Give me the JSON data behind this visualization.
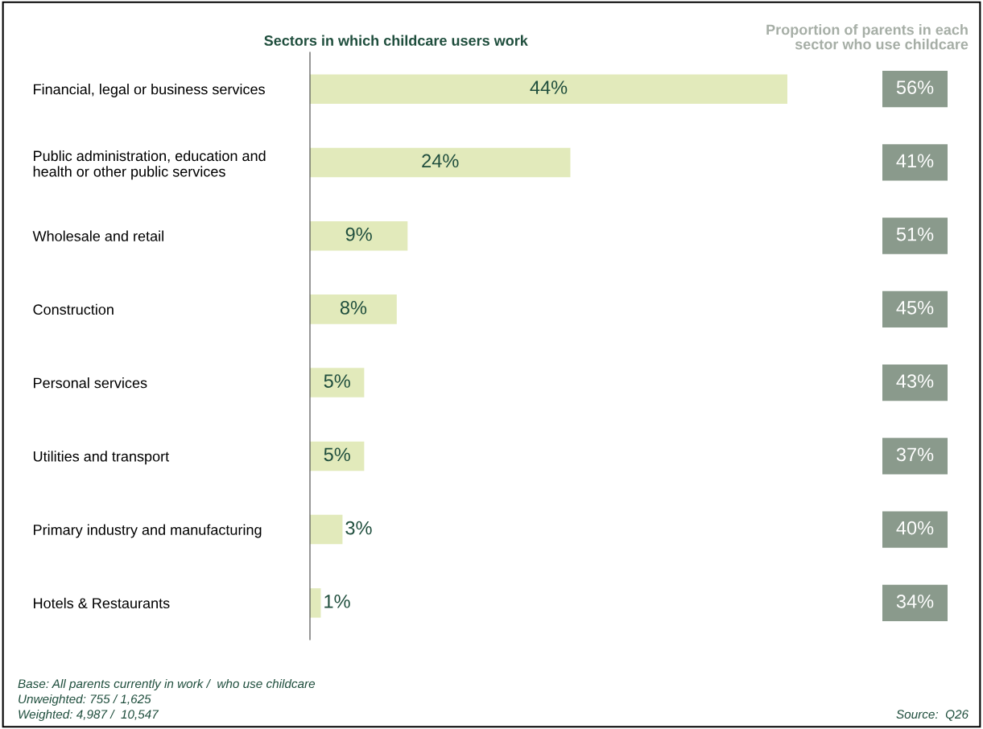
{
  "chart_data": [
    {
      "type": "bar",
      "orientation": "horizontal",
      "title": "Sectors in which childcare users work",
      "categories": [
        "Financial, legal or business services",
        "Public administration, education and\nhealth or other public services",
        "Wholesale and retail",
        "Construction",
        "Personal services",
        "Utilities and transport",
        "Primary industry and manufacturing",
        "Hotels & Restaurants"
      ],
      "values": [
        44,
        24,
        9,
        8,
        5,
        5,
        3,
        1
      ],
      "value_labels": [
        "44%",
        "24%",
        "9%",
        "8%",
        "5%",
        "5%",
        "3%",
        "1%"
      ],
      "color": "#e2eabb",
      "tick_labels": "y",
      "annotations": [
        "Base: All parents currently in work /  who use childcare",
        "Unweighted: 755 / 1,625",
        "Weighted: 4,987 /  10,547",
        "Source:  Q26"
      ]
    },
    {
      "type": "other",
      "title": "Proportion of parents in each\nsector who use childcare",
      "values": [
        56,
        41,
        51,
        45,
        43,
        37,
        40,
        34
      ],
      "value_labels": [
        "56%",
        "41%",
        "51%",
        "45%",
        "43%",
        "37%",
        "40%",
        "34%"
      ],
      "color": "#8a9a8c"
    }
  ]
}
